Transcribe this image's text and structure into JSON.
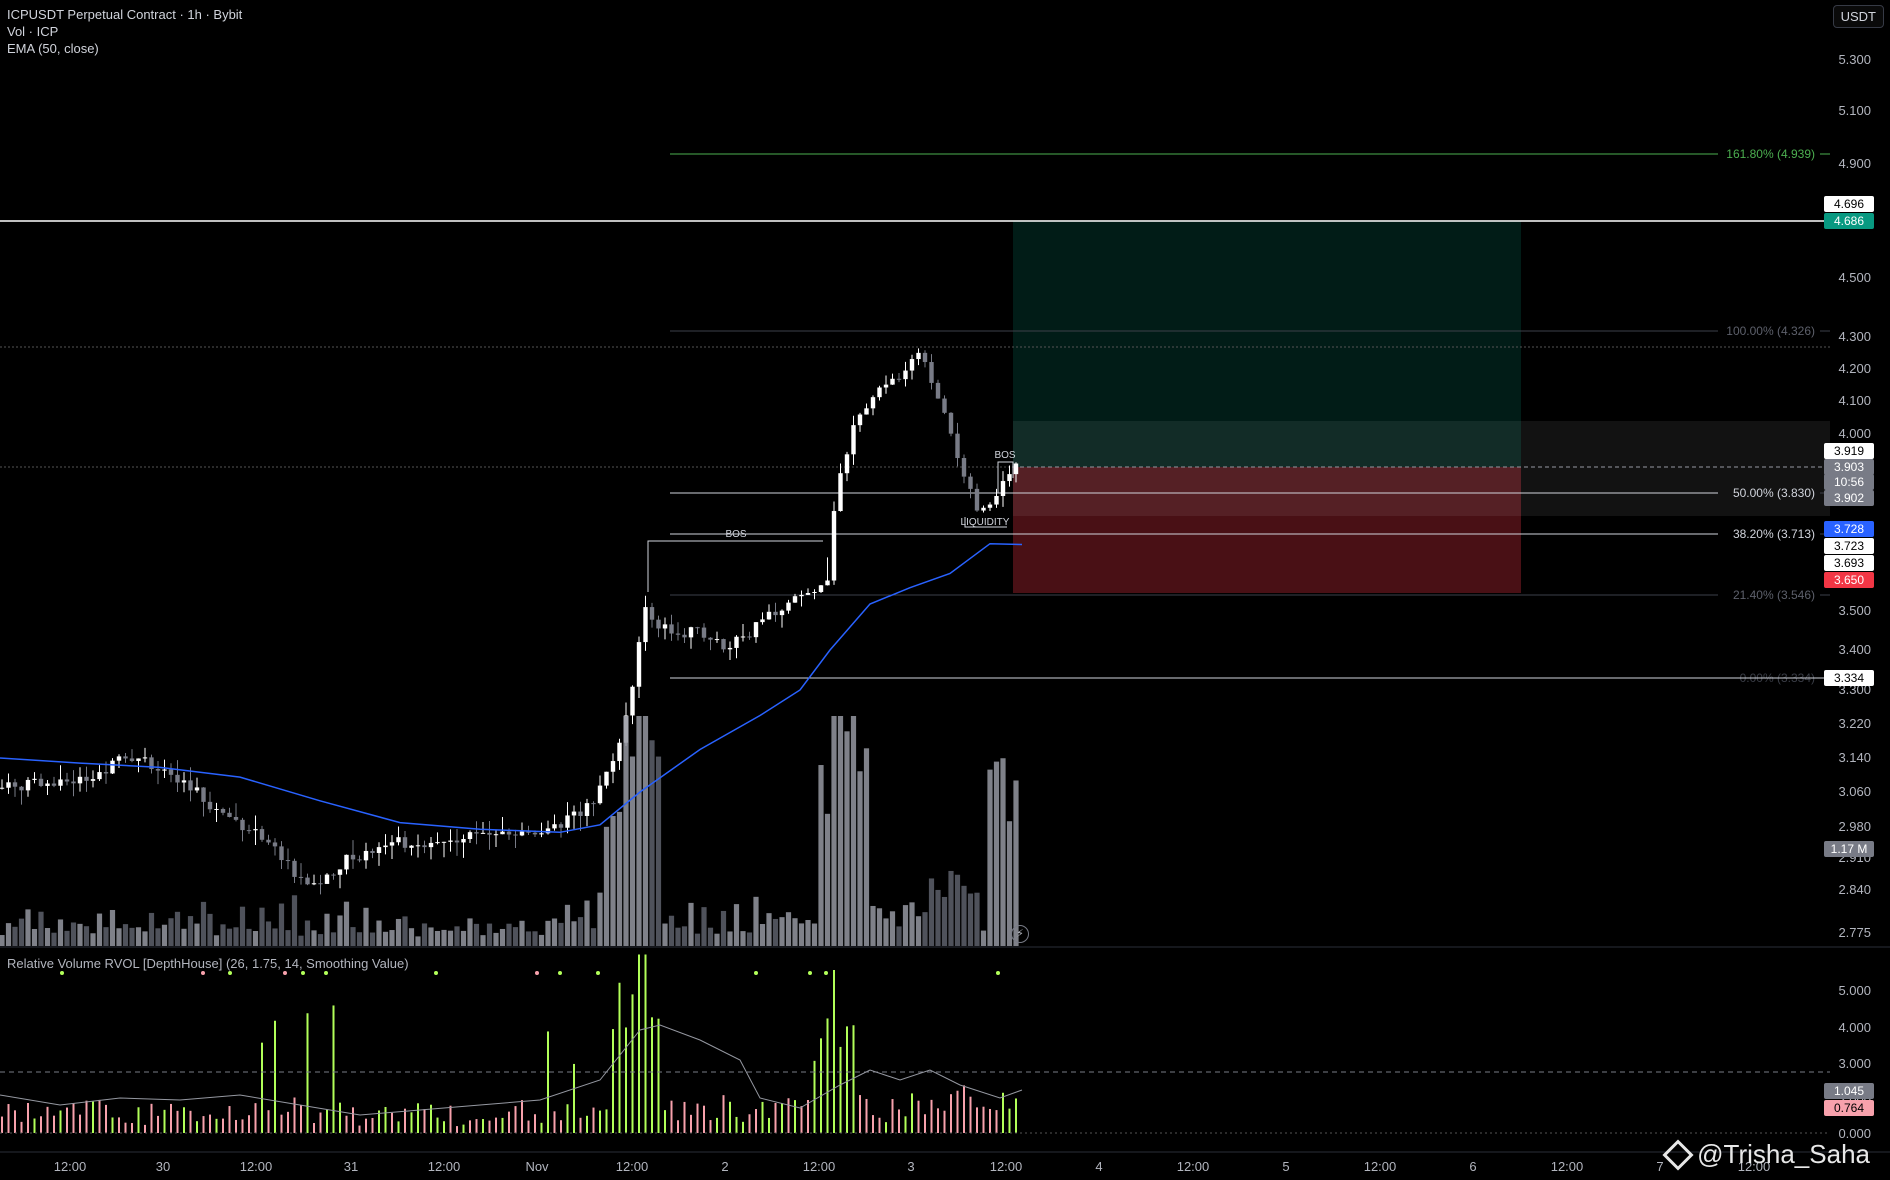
{
  "header": {
    "symbol_title": "ICPUSDT Perpetual Contract · 1h · Bybit",
    "volume_label": "Vol · ICP",
    "ema_label": "EMA (50, close)",
    "currency_button": "USDT"
  },
  "rvol_panel": {
    "title": "Relative Volume RVOL [DepthHouse] (26, 1.75, 14, Smoothing Value)"
  },
  "watermark": "@Trisha_Saha",
  "price_axis": {
    "ticks": [
      "5.300",
      "5.100",
      "4.900",
      "4.500",
      "4.300",
      "4.200",
      "4.100",
      "4.000",
      "3.500",
      "3.400",
      "3.300",
      "3.220",
      "3.140",
      "3.060",
      "2.980",
      "2.910",
      "2.840",
      "2.775"
    ],
    "labels": [
      {
        "text": "4.696",
        "bg": "#ffffff",
        "fg": "#000000"
      },
      {
        "text": "4.686",
        "bg": "#089981",
        "fg": "#ffffff"
      },
      {
        "text": "3.919",
        "bg": "#ffffff",
        "fg": "#000000"
      },
      {
        "text": "3.903",
        "bg": "#787b86",
        "fg": "#ffffff"
      },
      {
        "text": "10:56",
        "bg": "#787b86",
        "fg": "#ffffff"
      },
      {
        "text": "3.902",
        "bg": "#787b86",
        "fg": "#ffffff"
      },
      {
        "text": "3.728",
        "bg": "#2962ff",
        "fg": "#ffffff"
      },
      {
        "text": "3.723",
        "bg": "#ffffff",
        "fg": "#000000"
      },
      {
        "text": "3.693",
        "bg": "#ffffff",
        "fg": "#000000"
      },
      {
        "text": "3.650",
        "bg": "#f23645",
        "fg": "#ffffff"
      },
      {
        "text": "3.334",
        "bg": "#ffffff",
        "fg": "#000000"
      },
      {
        "text": "1.17 M",
        "bg": "#787b86",
        "fg": "#ffffff"
      }
    ]
  },
  "rvol_axis": {
    "ticks": [
      "5.000",
      "4.000",
      "3.000",
      "2.000",
      "0.000"
    ],
    "labels": [
      {
        "text": "1.045",
        "bg": "#787b86",
        "fg": "#ffffff"
      },
      {
        "text": "0.764",
        "bg": "#f7a1ac",
        "fg": "#000000"
      }
    ]
  },
  "time_axis": [
    "12:00",
    "30",
    "12:00",
    "31",
    "12:00",
    "Nov",
    "12:00",
    "2",
    "12:00",
    "3",
    "12:00",
    "4",
    "12:00",
    "5",
    "12:00",
    "6",
    "12:00",
    "7",
    "12:00"
  ],
  "fib_levels": [
    {
      "text": "161.80% (4.939)",
      "color": "#4caf50"
    },
    {
      "text": "100.00% (4.326)",
      "color": "#5d606b"
    },
    {
      "text": "50.00% (3.830)",
      "color": "#d1d4dc"
    },
    {
      "text": "38.20% (3.713)",
      "color": "#d1d4dc"
    },
    {
      "text": "21.40% (3.546)",
      "color": "#5d606b"
    },
    {
      "text": "0.00% (3.334)",
      "color": "#3a3d46"
    }
  ],
  "annotations": [
    "BOS",
    "BOS",
    "LIQUIDITY"
  ],
  "chart_data": {
    "type": "candlestick",
    "symbol": "ICPUSDT",
    "timeframe": "1h",
    "ema_period": 50,
    "horizontal_levels": [
      4.696,
      4.276,
      3.723
    ],
    "long_position": {
      "entry": 3.919,
      "target": 4.686,
      "stop": 3.65
    },
    "fib_retracement": {
      "low": 3.334,
      "high": 4.326,
      "levels": [
        0,
        0.214,
        0.382,
        0.5,
        1.0,
        1.618
      ]
    },
    "colors": {
      "up": "#ffffff",
      "down": "#787b86",
      "ema": "#2962ff",
      "target_zone": "#089981",
      "stop_zone": "#f23645",
      "rvol_up": "#b2ff59",
      "rvol_down": "#f7a1ac"
    }
  }
}
